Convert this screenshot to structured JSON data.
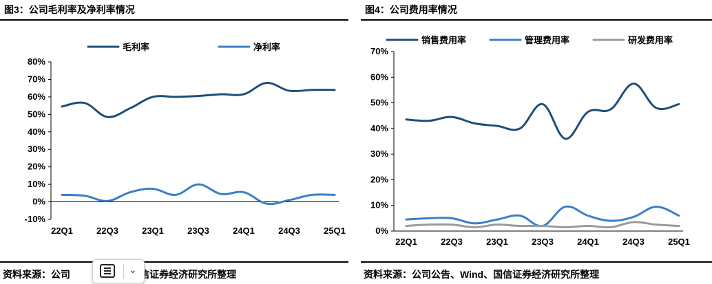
{
  "left": {
    "title": "图3：公司毛利率及净利率情况",
    "source": "资料来源：公司",
    "source_tail": "nd、国信证券经济研究所整理"
  },
  "right": {
    "title": "图4：公司费用率情况",
    "source": "资料来源：公司公告、Wind、国信证券经济研究所整理"
  },
  "colors": {
    "dark_blue": "#1f4e79",
    "light_blue": "#3a7fc8",
    "gray": "#9a9a9a"
  },
  "overlay": {
    "menu_icon": "menu-icon",
    "chevron_icon": "chevron-down-icon"
  },
  "chart_data": [
    {
      "type": "line",
      "title": "图3：公司毛利率及净利率情况",
      "x": [
        "22Q1",
        "22Q2",
        "22Q3",
        "22Q4",
        "23Q1",
        "23Q2",
        "23Q3",
        "23Q4",
        "24Q1",
        "24Q2",
        "24Q3",
        "24Q4",
        "25Q1"
      ],
      "tick_labels": [
        "22Q1",
        "22Q3",
        "23Q1",
        "23Q3",
        "24Q1",
        "24Q3",
        "25Q1"
      ],
      "series": [
        {
          "name": "毛利率",
          "color": "#1f4e79",
          "values": [
            54.5,
            56.5,
            48.5,
            53.5,
            60.0,
            60.0,
            60.5,
            61.5,
            61.5,
            68.0,
            63.5,
            64.0,
            64.0
          ]
        },
        {
          "name": "净利率",
          "color": "#3a7fc8",
          "values": [
            4.0,
            3.5,
            0.5,
            5.5,
            7.5,
            4.0,
            10.0,
            4.5,
            5.5,
            -1.0,
            1.0,
            4.0,
            4.0
          ]
        }
      ],
      "ylim": [
        -10,
        80
      ],
      "yticks": [
        -10,
        0,
        10,
        20,
        30,
        40,
        50,
        60,
        70,
        80
      ],
      "ytick_labels": [
        "-10%",
        "0%",
        "10%",
        "20%",
        "30%",
        "40%",
        "50%",
        "60%",
        "70%",
        "80%"
      ],
      "legend": "top-center",
      "grid": false
    },
    {
      "type": "line",
      "title": "图4：公司费用率情况",
      "x": [
        "22Q1",
        "22Q2",
        "22Q3",
        "22Q4",
        "23Q1",
        "23Q2",
        "23Q3",
        "23Q4",
        "24Q1",
        "24Q2",
        "24Q3",
        "24Q4",
        "25Q1"
      ],
      "tick_labels": [
        "22Q1",
        "22Q3",
        "23Q1",
        "23Q3",
        "24Q1",
        "24Q3",
        "25Q1"
      ],
      "series": [
        {
          "name": "销售费用率",
          "color": "#1f4e79",
          "values": [
            43.5,
            43.0,
            44.5,
            42.0,
            41.0,
            40.0,
            49.5,
            36.0,
            46.5,
            47.5,
            57.5,
            48.0,
            49.5
          ]
        },
        {
          "name": "管理费用率",
          "color": "#3a7fc8",
          "values": [
            4.5,
            5.0,
            5.0,
            3.0,
            4.5,
            6.0,
            2.0,
            9.5,
            6.0,
            4.0,
            5.5,
            9.5,
            6.0
          ]
        },
        {
          "name": "研发费用率",
          "color": "#9a9a9a",
          "values": [
            2.0,
            2.5,
            2.5,
            1.5,
            2.5,
            2.0,
            2.0,
            1.5,
            2.0,
            1.5,
            3.5,
            2.5,
            2.0
          ]
        }
      ],
      "ylim": [
        0,
        70
      ],
      "yticks": [
        0,
        10,
        20,
        30,
        40,
        50,
        60,
        70
      ],
      "ytick_labels": [
        "0%",
        "10%",
        "20%",
        "30%",
        "40%",
        "50%",
        "60%",
        "70%"
      ],
      "legend": "top",
      "grid": false
    }
  ]
}
